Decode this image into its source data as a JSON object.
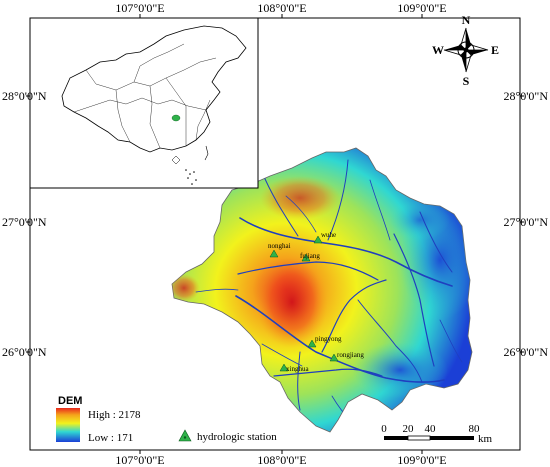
{
  "map": {
    "graticule": {
      "top_labels": [
        "107°0'0\"E",
        "108°0'0\"E",
        "109°0'0\"E"
      ],
      "bottom_labels": [
        "107°0'0\"E",
        "108°0'0\"E",
        "109°0'0\"E"
      ],
      "left_labels": [
        "28°0'0\"N",
        "27°0'0\"N",
        "26°0'0\"N"
      ],
      "right_labels": [
        "28°0'0\"N",
        "27°0'0\"N",
        "26°0'0\"N"
      ]
    },
    "north_arrow": {
      "n": "N",
      "s": "S",
      "e": "E",
      "w": "W"
    },
    "stations": [
      {
        "name": "wuhe"
      },
      {
        "name": "nonghai"
      },
      {
        "name": "fujiang"
      },
      {
        "name": "pingyong"
      },
      {
        "name": "rongjiang"
      },
      {
        "name": "xinghua"
      }
    ],
    "legend": {
      "title": "DEM",
      "high_label": "High : 2178",
      "low_label": "Low : 171",
      "station_label": "hydrologic station"
    },
    "scale_bar": {
      "ticks": [
        "0",
        "20",
        "40",
        "80"
      ],
      "unit": "km"
    },
    "colors": {
      "high": "#e8281e",
      "mid_high": "#f5a21b",
      "mid": "#f2f21c",
      "mid_low": "#2fd7d2",
      "low": "#1b3fd6",
      "river": "#1f3fbf",
      "station_marker": "#2fb24a"
    }
  }
}
